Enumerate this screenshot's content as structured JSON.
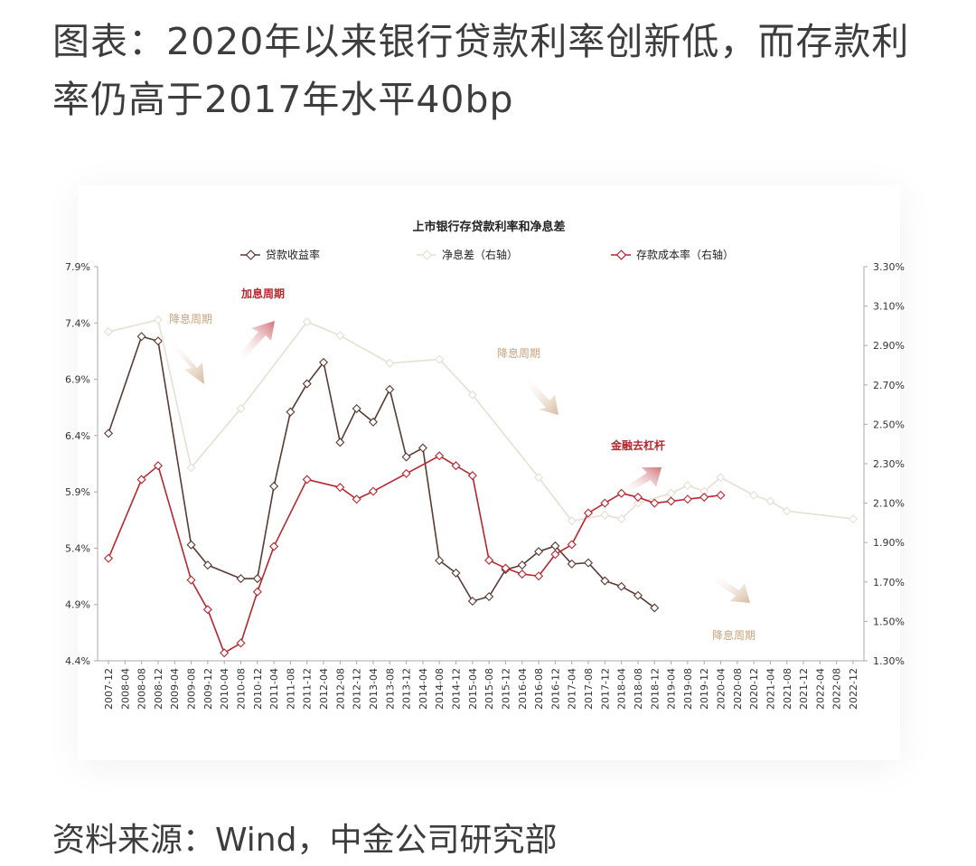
{
  "page": {
    "title": "图表：2020年以来银行贷款利率创新低，而存款利率仍高于2017年水平40bp",
    "source": "资料来源：Wind，中金公司研究部"
  },
  "chart_data": {
    "type": "line",
    "title": "上市银行存贷款利率和净息差",
    "categories": [
      "2007-12",
      "2008-04",
      "2008-08",
      "2008-12",
      "2009-04",
      "2009-08",
      "2009-12",
      "2010-04",
      "2010-08",
      "2010-12",
      "2011-04",
      "2011-08",
      "2011-12",
      "2012-04",
      "2012-08",
      "2012-12",
      "2013-04",
      "2013-08",
      "2013-12",
      "2014-04",
      "2014-08",
      "2014-12",
      "2015-04",
      "2015-08",
      "2015-12",
      "2016-04",
      "2016-08",
      "2016-12",
      "2017-04",
      "2017-08",
      "2017-12",
      "2018-04",
      "2018-08",
      "2018-12",
      "2019-04",
      "2019-08",
      "2019-12",
      "2020-04",
      "2020-08",
      "2020-12",
      "2021-04",
      "2021-08",
      "2021-12",
      "2022-04",
      "2022-08",
      "2022-12"
    ],
    "left_axis": {
      "min": 4.4,
      "max": 7.9,
      "ticks": [
        "4.4%",
        "4.9%",
        "5.4%",
        "5.9%",
        "6.4%",
        "6.9%",
        "7.4%",
        "7.9%"
      ]
    },
    "right_axis": {
      "min": 1.3,
      "max": 3.3,
      "ticks": [
        "1.30%",
        "1.50%",
        "1.70%",
        "1.90%",
        "2.10%",
        "2.30%",
        "2.50%",
        "2.70%",
        "2.90%",
        "3.10%",
        "3.30%"
      ]
    },
    "series": [
      {
        "name": "贷款收益率",
        "axis": "left",
        "color": "#5a3a32",
        "points": [
          [
            "2007-12",
            6.42
          ],
          [
            "2008-08",
            7.28
          ],
          [
            "2008-12",
            7.24
          ],
          [
            "2009-08",
            5.43
          ],
          [
            "2009-12",
            5.25
          ],
          [
            "2010-08",
            5.13
          ],
          [
            "2010-12",
            5.13
          ],
          [
            "2011-04",
            5.95
          ],
          [
            "2011-08",
            6.61
          ],
          [
            "2011-12",
            6.86
          ],
          [
            "2012-04",
            7.05
          ],
          [
            "2012-08",
            6.34
          ],
          [
            "2012-12",
            6.64
          ],
          [
            "2013-04",
            6.52
          ],
          [
            "2013-08",
            6.81
          ],
          [
            "2013-12",
            6.21
          ],
          [
            "2014-04",
            6.29
          ],
          [
            "2014-08",
            5.29
          ],
          [
            "2014-12",
            5.18
          ],
          [
            "2015-04",
            4.93
          ],
          [
            "2015-08",
            4.97
          ],
          [
            "2015-12",
            5.21
          ],
          [
            "2016-04",
            5.25
          ],
          [
            "2016-08",
            5.37
          ],
          [
            "2016-12",
            5.42
          ],
          [
            "2017-04",
            5.26
          ],
          [
            "2017-08",
            5.27
          ],
          [
            "2017-12",
            5.11
          ],
          [
            "2018-04",
            5.06
          ],
          [
            "2018-08",
            4.98
          ],
          [
            "2018-12",
            4.87
          ]
        ]
      },
      {
        "name": "净息差（右轴）",
        "axis": "right",
        "color": "#e5e0d2",
        "points": [
          [
            "2007-12",
            2.97
          ],
          [
            "2008-12",
            3.03
          ],
          [
            "2009-08",
            2.28
          ],
          [
            "2010-08",
            2.58
          ],
          [
            "2011-12",
            3.02
          ],
          [
            "2012-08",
            2.95
          ],
          [
            "2013-08",
            2.81
          ],
          [
            "2014-08",
            2.83
          ],
          [
            "2015-04",
            2.65
          ],
          [
            "2016-08",
            2.23
          ],
          [
            "2017-04",
            2.01
          ],
          [
            "2017-12",
            2.04
          ],
          [
            "2018-04",
            2.02
          ],
          [
            "2018-08",
            2.1
          ],
          [
            "2019-04",
            2.15
          ],
          [
            "2019-08",
            2.19
          ],
          [
            "2019-12",
            2.16
          ],
          [
            "2020-04",
            2.23
          ],
          [
            "2020-12",
            2.14
          ],
          [
            "2021-04",
            2.11
          ],
          [
            "2021-08",
            2.06
          ],
          [
            "2022-12",
            2.02
          ]
        ]
      },
      {
        "name": "存款成本率（右轴）",
        "axis": "right",
        "color": "#b8262e",
        "points": [
          [
            "2007-12",
            1.82
          ],
          [
            "2008-08",
            2.22
          ],
          [
            "2008-12",
            2.29
          ],
          [
            "2009-08",
            1.71
          ],
          [
            "2009-12",
            1.56
          ],
          [
            "2010-04",
            1.34
          ],
          [
            "2010-08",
            1.39
          ],
          [
            "2010-12",
            1.65
          ],
          [
            "2011-04",
            1.88
          ],
          [
            "2011-12",
            2.22
          ],
          [
            "2012-08",
            2.18
          ],
          [
            "2012-12",
            2.12
          ],
          [
            "2013-04",
            2.16
          ],
          [
            "2013-12",
            2.25
          ],
          [
            "2014-08",
            2.34
          ],
          [
            "2014-12",
            2.29
          ],
          [
            "2015-04",
            2.24
          ],
          [
            "2015-08",
            1.81
          ],
          [
            "2015-12",
            1.77
          ],
          [
            "2016-04",
            1.74
          ],
          [
            "2016-08",
            1.73
          ],
          [
            "2016-12",
            1.84
          ],
          [
            "2017-04",
            1.89
          ],
          [
            "2017-08",
            2.05
          ],
          [
            "2017-12",
            2.1
          ],
          [
            "2018-04",
            2.15
          ],
          [
            "2018-08",
            2.13
          ],
          [
            "2018-12",
            2.1
          ],
          [
            "2019-04",
            2.11
          ],
          [
            "2019-08",
            2.12
          ],
          [
            "2019-12",
            2.13
          ],
          [
            "2020-04",
            2.14
          ]
        ]
      }
    ],
    "annotations": [
      {
        "text": "降息周期",
        "color": "#c9a27a"
      },
      {
        "text": "加息周期",
        "color": "#b8262e"
      },
      {
        "text": "降息周期",
        "color": "#c9a27a"
      },
      {
        "text": "金融去杠杆",
        "color": "#b8262e"
      },
      {
        "text": "降息周期",
        "color": "#c9a27a"
      }
    ],
    "legend_placement": "top",
    "grid": false
  }
}
